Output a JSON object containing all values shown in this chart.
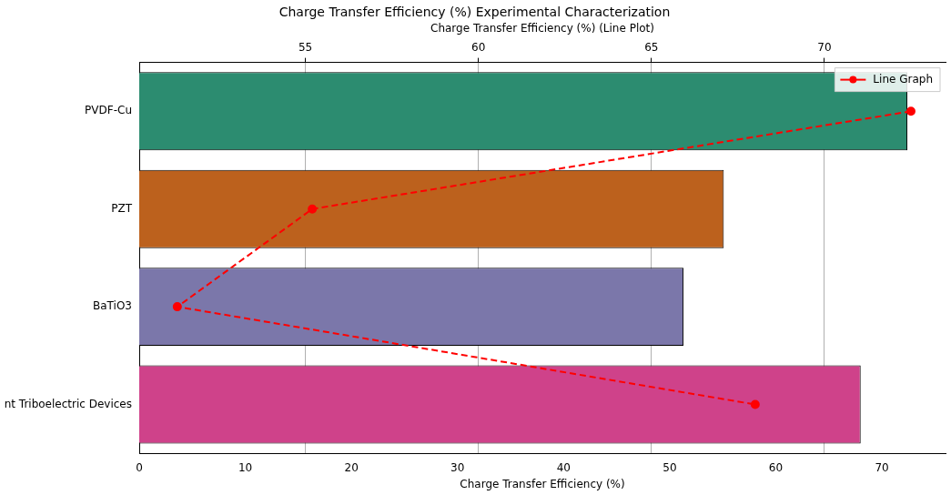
{
  "chart_data": {
    "type": "bar",
    "orientation": "horizontal",
    "title": "Charge Transfer Efficiency (%) Experimental Characterization",
    "xlabel": "Charge Transfer Efficiency (%)",
    "x2label": "Charge Transfer Efficiency (%) (Line Plot)",
    "categories": [
      "PVDF-Cu",
      "PZT",
      "BaTiO3",
      "nt Triboelectric Devices"
    ],
    "series": [
      {
        "type": "bar",
        "colors": [
          "#2c8c70",
          "#bc611d",
          "#7b77aa",
          "#cf428a"
        ],
        "values": [
          72.4,
          55.1,
          51.3,
          68.0
        ]
      },
      {
        "type": "line",
        "name": "Line Graph",
        "axis": "x2",
        "color": "#ff0000",
        "marker": "circle",
        "line_style": "dashed",
        "values": [
          72.5,
          55.2,
          51.3,
          68.0
        ]
      }
    ],
    "xlim": [
      0,
      76
    ],
    "xticks": [
      0,
      10,
      20,
      30,
      40,
      50,
      60,
      70
    ],
    "x2lim": [
      50.2,
      73.5
    ],
    "x2ticks": [
      55,
      60,
      65,
      70
    ],
    "grid": "x2",
    "legend": "top right"
  }
}
